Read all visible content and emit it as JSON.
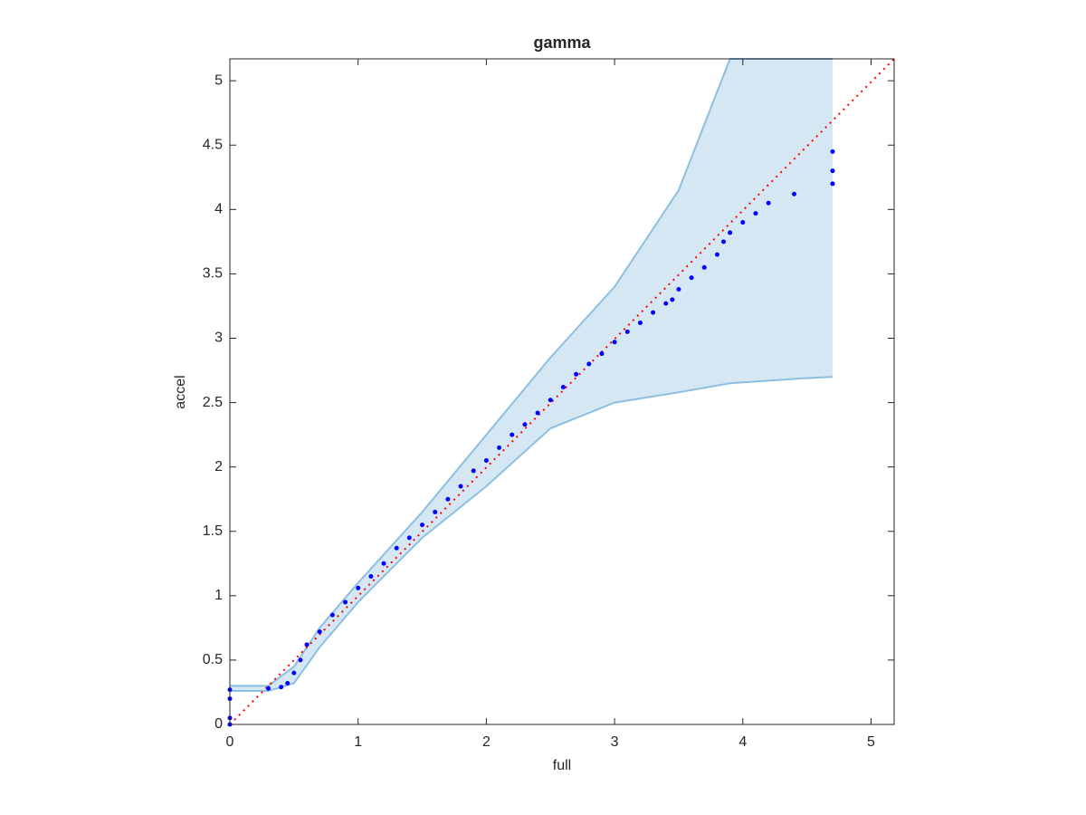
{
  "chart_data": {
    "type": "scatter",
    "title": "gamma",
    "x_label": "full",
    "y_label": "accel",
    "xlim": [
      0,
      5.18
    ],
    "ylim": [
      0,
      5.17
    ],
    "xticks": [
      0,
      1,
      2,
      3,
      4,
      5
    ],
    "yticks": [
      0,
      0.5,
      1,
      1.5,
      2,
      2.5,
      3,
      3.5,
      4,
      4.5,
      5
    ],
    "points": {
      "color": "#0000ff",
      "x": [
        0,
        0,
        0,
        0,
        0.3,
        0.4,
        0.45,
        0.5,
        0.55,
        0.6,
        0.7,
        0.8,
        0.9,
        1.0,
        1.1,
        1.2,
        1.3,
        1.4,
        1.5,
        1.6,
        1.7,
        1.8,
        1.9,
        2.0,
        2.1,
        2.2,
        2.3,
        2.4,
        2.5,
        2.6,
        2.7,
        2.8,
        2.9,
        3.0,
        3.1,
        3.2,
        3.3,
        3.4,
        3.45,
        3.5,
        3.6,
        3.7,
        3.8,
        3.85,
        3.9,
        4.0,
        4.1,
        4.2,
        4.4,
        4.7,
        4.7,
        4.7
      ],
      "values": [
        0,
        0.05,
        0.2,
        0.27,
        0.28,
        0.29,
        0.32,
        0.4,
        0.5,
        0.62,
        0.72,
        0.85,
        0.95,
        1.06,
        1.15,
        1.25,
        1.37,
        1.45,
        1.55,
        1.65,
        1.75,
        1.85,
        1.97,
        2.05,
        2.15,
        2.25,
        2.33,
        2.42,
        2.52,
        2.62,
        2.72,
        2.8,
        2.88,
        2.97,
        3.05,
        3.12,
        3.2,
        3.27,
        3.3,
        3.38,
        3.47,
        3.55,
        3.65,
        3.75,
        3.82,
        3.9,
        3.97,
        4.05,
        4.12,
        4.2,
        4.3,
        4.45
      ]
    },
    "band": {
      "fill": "#d6e7f4",
      "edge": "#8dbfe0",
      "x": [
        0,
        0.3,
        0.5,
        0.7,
        1.0,
        1.5,
        2.0,
        2.5,
        3.0,
        3.5,
        3.9,
        4.5,
        4.7
      ],
      "upper": [
        0.3,
        0.3,
        0.45,
        0.75,
        1.1,
        1.65,
        2.25,
        2.85,
        3.4,
        4.15,
        5.17,
        5.17,
        5.17
      ],
      "lower": [
        0.26,
        0.26,
        0.32,
        0.6,
        0.95,
        1.45,
        1.85,
        2.3,
        2.5,
        2.58,
        2.65,
        2.69,
        2.7
      ]
    },
    "reference": {
      "color": "#ff0000",
      "x": [
        0,
        5.18
      ],
      "values": [
        0,
        5.17
      ]
    }
  }
}
